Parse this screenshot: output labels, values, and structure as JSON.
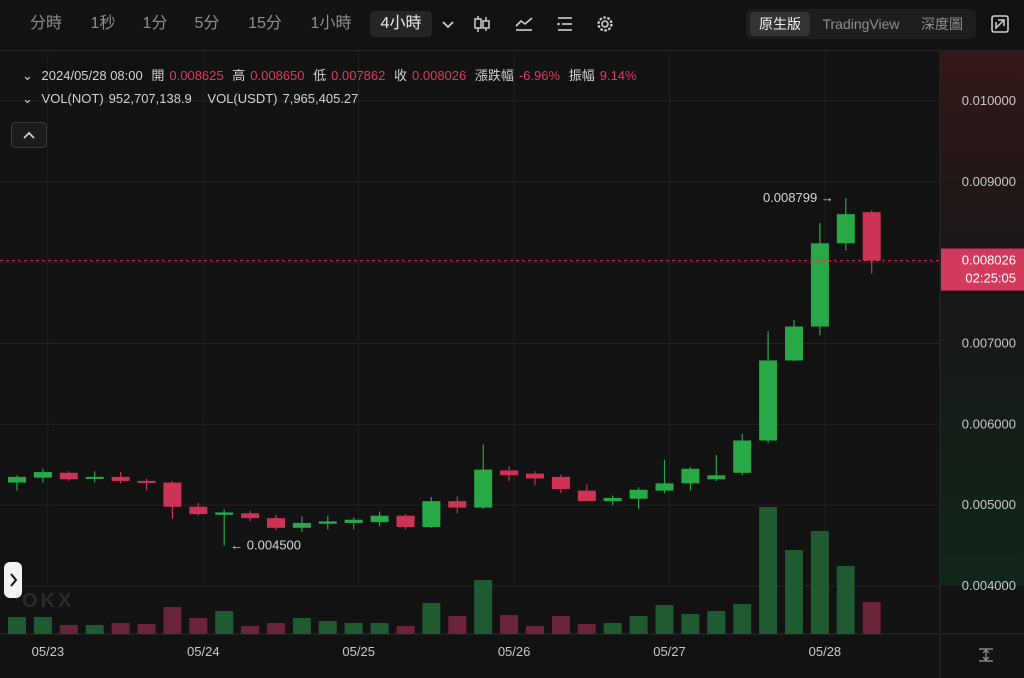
{
  "toolbar": {
    "timeframes": [
      "分時",
      "1秒",
      "1分",
      "5分",
      "15分",
      "1小時",
      "4小時"
    ],
    "active_timeframe": "4小時",
    "views": [
      "原生版",
      "TradingView",
      "深度圖"
    ],
    "active_view": "原生版"
  },
  "legend": {
    "datetime": "2024/05/28 08:00",
    "open_label": "開",
    "open": "0.008625",
    "high_label": "高",
    "high": "0.008650",
    "low_label": "低",
    "low": "0.007862",
    "close_label": "收",
    "close": "0.008026",
    "change_label": "漲跌幅",
    "change": "-6.96%",
    "amp_label": "振幅",
    "amp": "9.14%",
    "vol_base_label": "VOL(NOT)",
    "vol_base": "952,707,138.9",
    "vol_quote_label": "VOL(USDT)",
    "vol_quote": "7,965,405.27"
  },
  "colors": {
    "up": "#29a847",
    "down": "#cc3355",
    "price_tag": "#d23a5c",
    "background": "#121212"
  },
  "chart_data": {
    "type": "candlestick",
    "y_axis": {
      "ticks": [
        "0.010000",
        "0.009000",
        "0.007000",
        "0.006000",
        "0.005000",
        "0.004000"
      ],
      "range": [
        0.0036,
        0.0106
      ]
    },
    "x_axis": {
      "labels": [
        "05/23",
        "05/24",
        "05/25",
        "05/26",
        "05/27",
        "05/28"
      ],
      "label_candle_index": [
        1,
        7,
        13,
        19,
        25,
        31
      ]
    },
    "candles": [
      {
        "o": 0.00528,
        "h": 0.00537,
        "l": 0.00518,
        "c": 0.00535,
        "v": 17
      },
      {
        "o": 0.00534,
        "h": 0.00545,
        "l": 0.00528,
        "c": 0.00541,
        "v": 17
      },
      {
        "o": 0.0054,
        "h": 0.00542,
        "l": 0.0053,
        "c": 0.00532,
        "v": 9
      },
      {
        "o": 0.00533,
        "h": 0.00542,
        "l": 0.00528,
        "c": 0.00535,
        "v": 9
      },
      {
        "o": 0.00535,
        "h": 0.00541,
        "l": 0.00527,
        "c": 0.0053,
        "v": 11
      },
      {
        "o": 0.0053,
        "h": 0.00533,
        "l": 0.00518,
        "c": 0.00528,
        "v": 10
      },
      {
        "o": 0.00528,
        "h": 0.0053,
        "l": 0.00483,
        "c": 0.00498,
        "v": 27
      },
      {
        "o": 0.00498,
        "h": 0.00503,
        "l": 0.00487,
        "c": 0.00489,
        "v": 16
      },
      {
        "o": 0.00488,
        "h": 0.00495,
        "l": 0.0045,
        "c": 0.00491,
        "v": 23
      },
      {
        "o": 0.0049,
        "h": 0.00493,
        "l": 0.0048,
        "c": 0.00484,
        "v": 8
      },
      {
        "o": 0.00484,
        "h": 0.00488,
        "l": 0.00469,
        "c": 0.00472,
        "v": 11
      },
      {
        "o": 0.00472,
        "h": 0.00486,
        "l": 0.00467,
        "c": 0.00478,
        "v": 16
      },
      {
        "o": 0.00477,
        "h": 0.00487,
        "l": 0.0047,
        "c": 0.0048,
        "v": 13
      },
      {
        "o": 0.00478,
        "h": 0.00485,
        "l": 0.0047,
        "c": 0.00482,
        "v": 11
      },
      {
        "o": 0.00479,
        "h": 0.00492,
        "l": 0.00474,
        "c": 0.00487,
        "v": 11
      },
      {
        "o": 0.00487,
        "h": 0.00489,
        "l": 0.0047,
        "c": 0.00473,
        "v": 8
      },
      {
        "o": 0.00473,
        "h": 0.0051,
        "l": 0.00472,
        "c": 0.00505,
        "v": 31
      },
      {
        "o": 0.00505,
        "h": 0.00511,
        "l": 0.0049,
        "c": 0.00497,
        "v": 18
      },
      {
        "o": 0.00497,
        "h": 0.00575,
        "l": 0.00495,
        "c": 0.00544,
        "v": 54
      },
      {
        "o": 0.00543,
        "h": 0.00548,
        "l": 0.0053,
        "c": 0.00537,
        "v": 19
      },
      {
        "o": 0.00539,
        "h": 0.00542,
        "l": 0.00525,
        "c": 0.00533,
        "v": 8
      },
      {
        "o": 0.00535,
        "h": 0.00538,
        "l": 0.00515,
        "c": 0.0052,
        "v": 18
      },
      {
        "o": 0.00518,
        "h": 0.00526,
        "l": 0.00505,
        "c": 0.00505,
        "v": 10
      },
      {
        "o": 0.00505,
        "h": 0.00512,
        "l": 0.005,
        "c": 0.00509,
        "v": 11
      },
      {
        "o": 0.00508,
        "h": 0.00522,
        "l": 0.00495,
        "c": 0.00519,
        "v": 18
      },
      {
        "o": 0.00518,
        "h": 0.00556,
        "l": 0.00515,
        "c": 0.00527,
        "v": 29
      },
      {
        "o": 0.00527,
        "h": 0.00547,
        "l": 0.00518,
        "c": 0.00545,
        "v": 20
      },
      {
        "o": 0.00532,
        "h": 0.00562,
        "l": 0.0053,
        "c": 0.00537,
        "v": 23
      },
      {
        "o": 0.0054,
        "h": 0.00588,
        "l": 0.00537,
        "c": 0.0058,
        "v": 30
      },
      {
        "o": 0.0058,
        "h": 0.00715,
        "l": 0.00577,
        "c": 0.00679,
        "v": 127
      },
      {
        "o": 0.00679,
        "h": 0.00729,
        "l": 0.00678,
        "c": 0.00721,
        "v": 84
      },
      {
        "o": 0.00721,
        "h": 0.00849,
        "l": 0.0071,
        "c": 0.00824,
        "v": 103
      },
      {
        "o": 0.00824,
        "h": 0.0088,
        "l": 0.00815,
        "c": 0.0086,
        "v": 68
      },
      {
        "o": 0.008625,
        "h": 0.00865,
        "l": 0.007862,
        "c": 0.008026,
        "v": 32
      }
    ],
    "annotations": {
      "high_label": "0.008799",
      "low_label": "0.004500"
    },
    "last_price": "0.008026",
    "countdown": "02:25:05"
  }
}
